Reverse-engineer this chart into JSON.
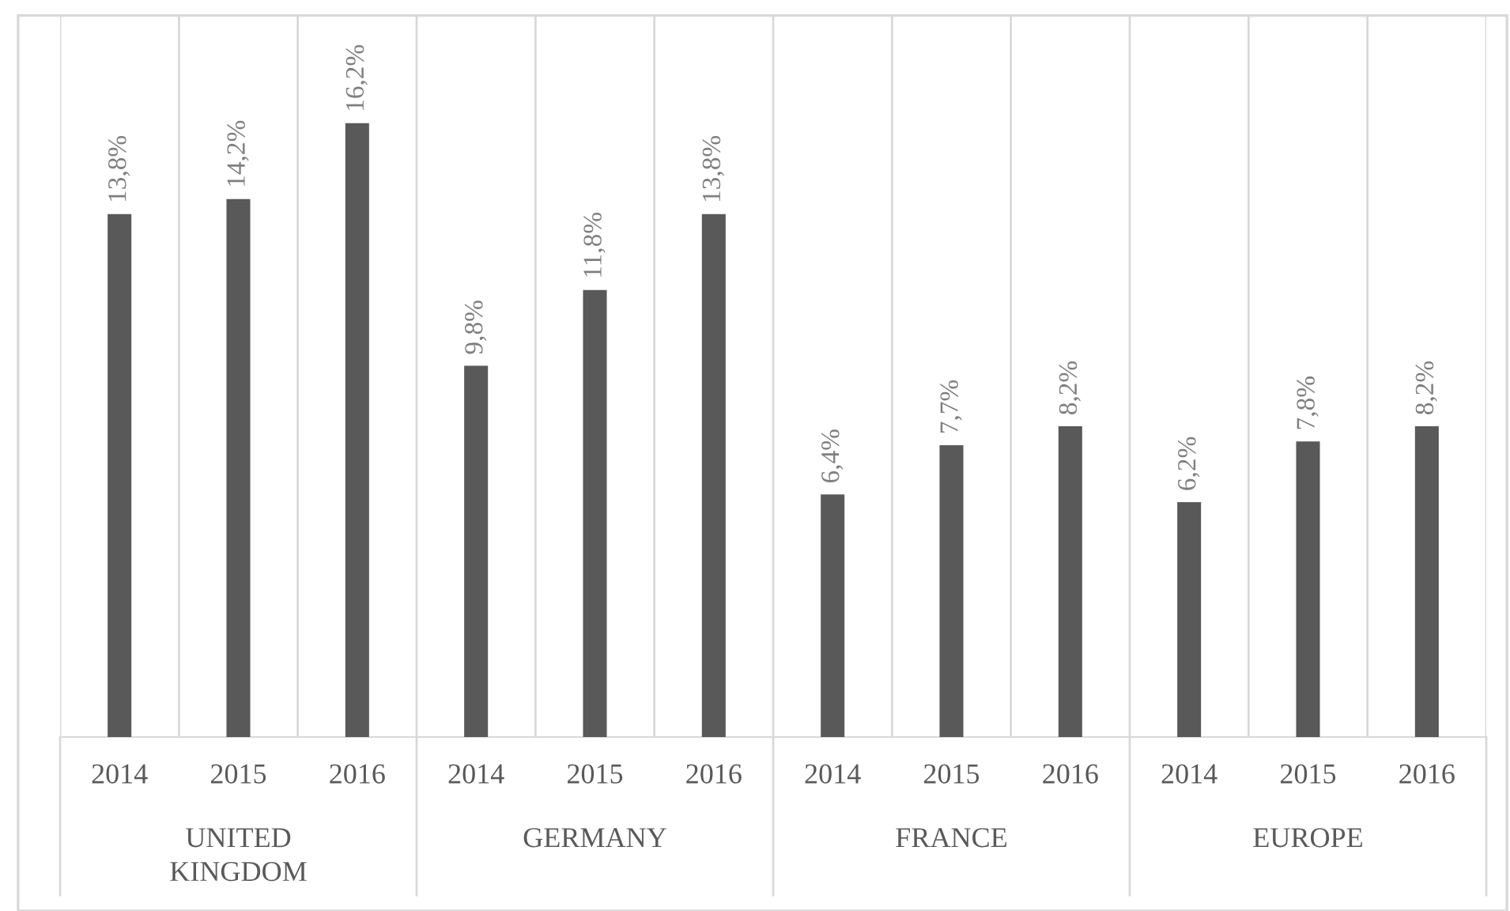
{
  "chart_data": {
    "type": "bar",
    "categories": [
      "2014",
      "2015",
      "2016",
      "2014",
      "2015",
      "2016",
      "2014",
      "2015",
      "2016",
      "2014",
      "2015",
      "2016"
    ],
    "values": [
      13.8,
      14.2,
      16.2,
      9.8,
      11.8,
      13.8,
      6.4,
      7.7,
      8.2,
      6.2,
      7.8,
      8.2
    ],
    "value_labels": [
      "13,8%",
      "14,2%",
      "16,2%",
      "9,8%",
      "11,8%",
      "13,8%",
      "6,4%",
      "7,7%",
      "8,2%",
      "6,2%",
      "7,8%",
      "8,2%"
    ],
    "color": "#595959",
    "annotations": [
      "UNITED\nKINGDOM",
      "GERMANY",
      "FRANCE",
      "EUROPE"
    ],
    "grid": "x",
    "legend": false
  }
}
